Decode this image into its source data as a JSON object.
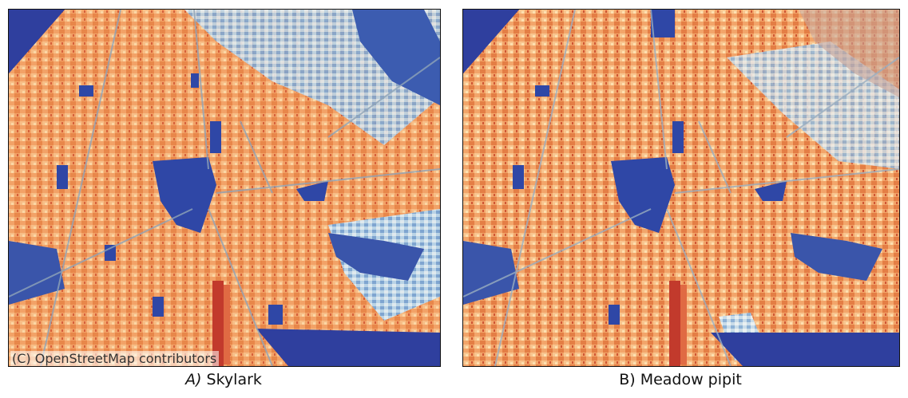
{
  "panels": [
    {
      "letter": "A)",
      "species": "Skylark",
      "letter_italic": true
    },
    {
      "letter": "B)",
      "species": "Meadow pipit",
      "letter_italic": false
    }
  ],
  "attribution": "(C) OpenStreetMap contributors",
  "colors": {
    "water": "#2f3f9e",
    "high_low_scale": [
      "#b2182b",
      "#e66a3c",
      "#f4a460",
      "#fdd9a0",
      "#e6eef2",
      "#a9cde0",
      "#5f8fc4",
      "#3852a8"
    ]
  }
}
